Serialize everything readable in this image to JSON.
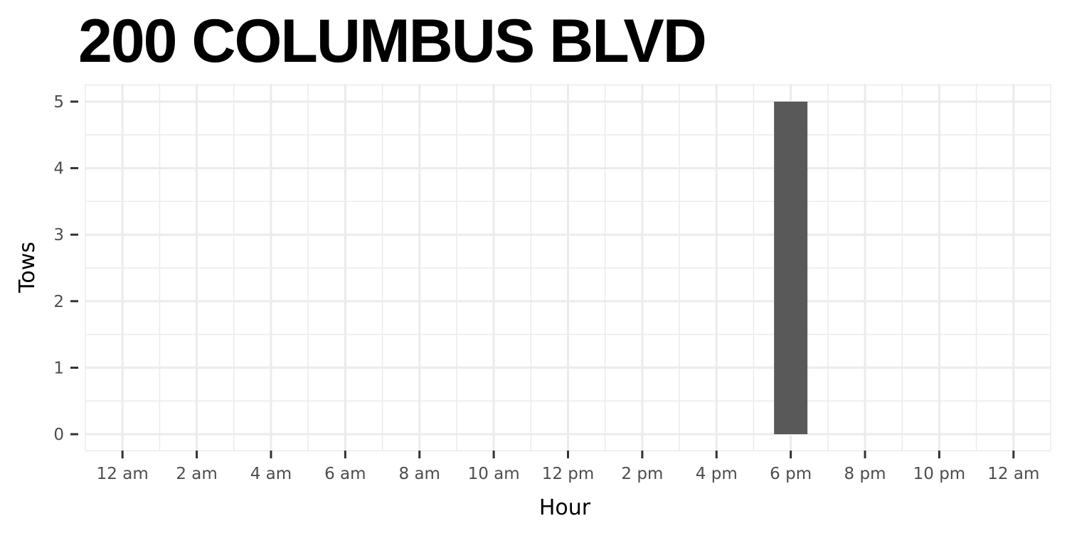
{
  "chart_data": {
    "type": "bar",
    "title": "200 COLUMBUS BLVD",
    "xlabel": "Hour",
    "ylabel": "Tows",
    "x": [
      18
    ],
    "values": [
      5
    ],
    "xlim": [
      -1,
      25
    ],
    "ylim": [
      0,
      5
    ],
    "x_ticks": [
      {
        "value": 0,
        "label": "12 am"
      },
      {
        "value": 2,
        "label": "2 am"
      },
      {
        "value": 4,
        "label": "4 am"
      },
      {
        "value": 6,
        "label": "6 am"
      },
      {
        "value": 8,
        "label": "8 am"
      },
      {
        "value": 10,
        "label": "10 am"
      },
      {
        "value": 12,
        "label": "12 pm"
      },
      {
        "value": 14,
        "label": "2 pm"
      },
      {
        "value": 16,
        "label": "4 pm"
      },
      {
        "value": 18,
        "label": "6 pm"
      },
      {
        "value": 20,
        "label": "8 pm"
      },
      {
        "value": 22,
        "label": "10 pm"
      },
      {
        "value": 24,
        "label": "12 am"
      }
    ],
    "y_ticks": [
      0,
      1,
      2,
      3,
      4,
      5
    ],
    "grid": true,
    "bar_color": "#595959",
    "grid_color": "#ebebeb",
    "background": "#ffffff"
  }
}
